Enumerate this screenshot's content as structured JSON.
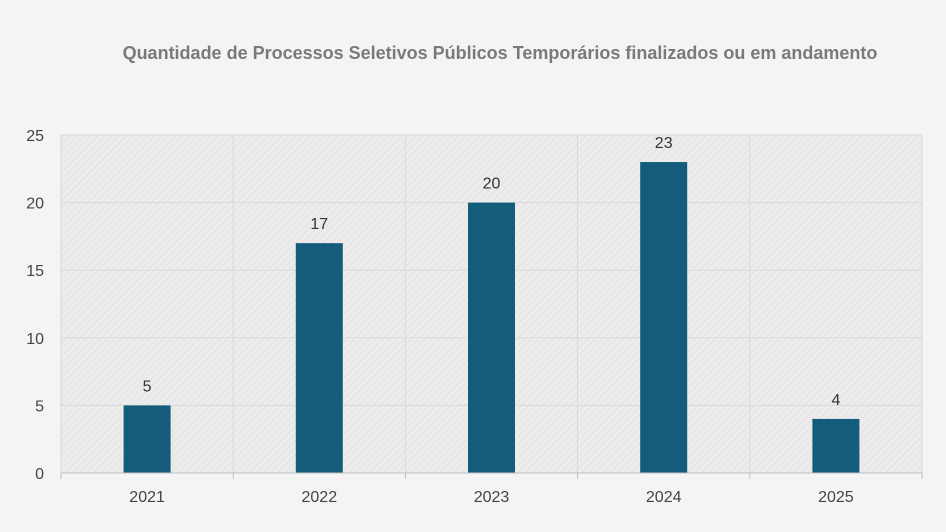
{
  "chart_data": {
    "type": "bar",
    "title": "Quantidade de Processos Seletivos Públicos Temporários finalizados ou em andamento",
    "categories": [
      "2021",
      "2022",
      "2023",
      "2024",
      "2025"
    ],
    "values": [
      5,
      17,
      20,
      23,
      4
    ],
    "data_labels": [
      "5",
      "17",
      "20",
      "23",
      "4"
    ],
    "y_ticks": [
      "0",
      "5",
      "10",
      "15",
      "20",
      "25"
    ],
    "ylim": [
      0,
      25
    ],
    "xlabel": "",
    "ylabel": "",
    "grid": true,
    "legend": "none",
    "bar_color": "#145c7c",
    "background_pattern": "diagonal-hatch"
  }
}
